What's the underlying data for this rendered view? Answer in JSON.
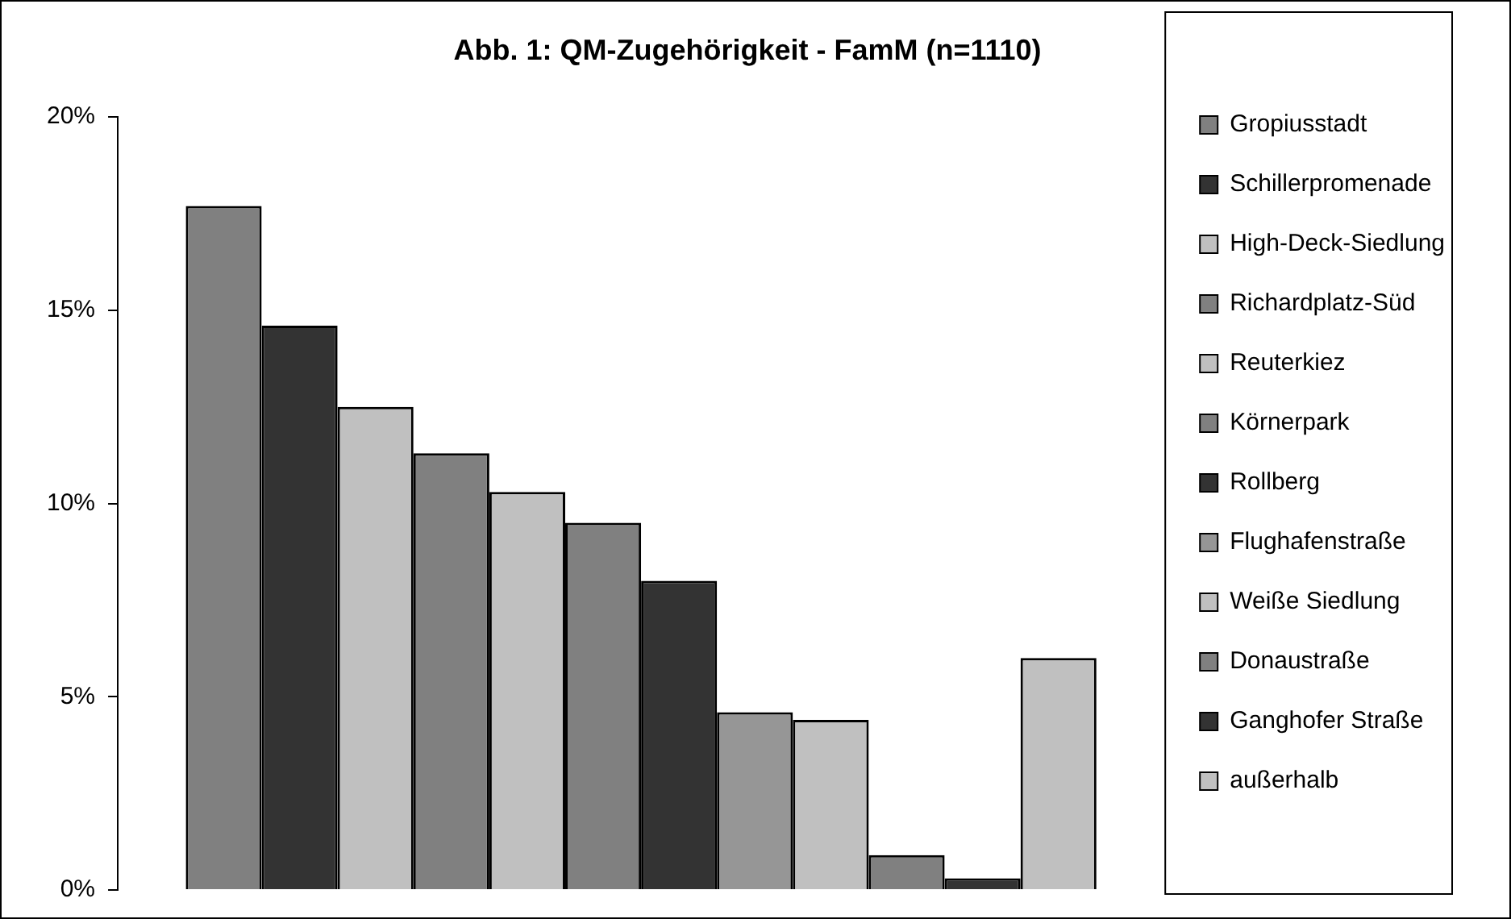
{
  "chart_data": {
    "type": "bar",
    "title": "Abb. 1: QM-Zugehörigkeit - FamM (n=1110)",
    "categories": [
      null
    ],
    "series": [
      {
        "name": "Gropiusstadt",
        "color": "#808080",
        "values": [
          17.7
        ]
      },
      {
        "name": "Schillerpromenade",
        "color": "#333333",
        "values": [
          14.6
        ]
      },
      {
        "name": "High-Deck-Siedlung",
        "color": "#c0c0c0",
        "values": [
          12.5
        ]
      },
      {
        "name": "Richardplatz-Süd",
        "color": "#808080",
        "values": [
          11.3
        ]
      },
      {
        "name": "Reuterkiez",
        "color": "#c0c0c0",
        "values": [
          10.3
        ]
      },
      {
        "name": "Körnerpark",
        "color": "#808080",
        "values": [
          9.5
        ]
      },
      {
        "name": "Rollberg",
        "color": "#333333",
        "values": [
          8.0
        ]
      },
      {
        "name": "Flughafenstraße",
        "color": "#969696",
        "values": [
          4.6
        ]
      },
      {
        "name": "Weiße Siedlung",
        "color": "#c0c0c0",
        "values": [
          4.4
        ]
      },
      {
        "name": "Donaustraße",
        "color": "#808080",
        "values": [
          0.9
        ]
      },
      {
        "name": "Ganghofer Straße",
        "color": "#333333",
        "values": [
          0.3
        ]
      },
      {
        "name": "außerhalb",
        "color": "#c0c0c0",
        "values": [
          6.0
        ]
      }
    ],
    "ylim": [
      0,
      20
    ],
    "yticks": [
      {
        "value": 0,
        "label": "0%"
      },
      {
        "value": 5,
        "label": "5%"
      },
      {
        "value": 10,
        "label": "10%"
      },
      {
        "value": 15,
        "label": "15%"
      },
      {
        "value": 20,
        "label": "20%"
      }
    ],
    "grid": false,
    "legend": "right",
    "tick_labels": "y"
  }
}
